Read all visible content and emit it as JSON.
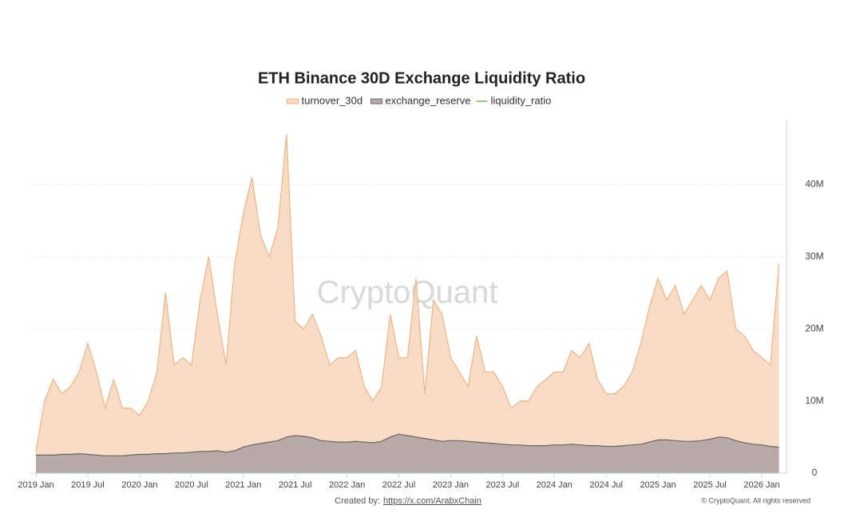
{
  "chart_data": {
    "type": "area",
    "title": "ETH Binance 30D Exchange Liquidity Ratio",
    "watermark": "CryptoQuant",
    "footer": {
      "prefix": "Created by:",
      "link": "https://x.com/ArabxChain",
      "copyright": "© CryptoQuant. All rights reserved"
    },
    "x": [
      "2019-01",
      "2019-02",
      "2019-03",
      "2019-04",
      "2019-05",
      "2019-06",
      "2019-07",
      "2019-08",
      "2019-09",
      "2019-10",
      "2019-11",
      "2019-12",
      "2020-01",
      "2020-02",
      "2020-03",
      "2020-04",
      "2020-05",
      "2020-06",
      "2020-07",
      "2020-08",
      "2020-09",
      "2020-10",
      "2020-11",
      "2020-12",
      "2021-01",
      "2021-02",
      "2021-03",
      "2021-04",
      "2021-05",
      "2021-06",
      "2021-07",
      "2021-08",
      "2021-09",
      "2021-10",
      "2021-11",
      "2021-12",
      "2022-01",
      "2022-02",
      "2022-03",
      "2022-04",
      "2022-05",
      "2022-06",
      "2022-07",
      "2022-08",
      "2022-09",
      "2022-10",
      "2022-11",
      "2022-12",
      "2023-01",
      "2023-02",
      "2023-03",
      "2023-04",
      "2023-05",
      "2023-06",
      "2023-07",
      "2023-08",
      "2023-09",
      "2023-10",
      "2023-11",
      "2023-12",
      "2024-01",
      "2024-02",
      "2024-03",
      "2024-04",
      "2024-05",
      "2024-06",
      "2024-07",
      "2024-08",
      "2024-09",
      "2024-10",
      "2024-11",
      "2024-12",
      "2025-01",
      "2025-02",
      "2025-03",
      "2025-04",
      "2025-05",
      "2025-06",
      "2025-07",
      "2025-08",
      "2025-09",
      "2025-10",
      "2025-11",
      "2025-12",
      "2026-01",
      "2026-02",
      "2026-03"
    ],
    "series": [
      {
        "name": "turnover_30d",
        "color": "#f0b483",
        "fill": "#f9dcc5",
        "values": [
          3000000,
          10000000,
          13000000,
          11000000,
          12000000,
          14000000,
          18000000,
          14000000,
          9000000,
          13000000,
          9000000,
          9000000,
          8000000,
          10000000,
          14000000,
          25000000,
          15000000,
          16000000,
          15000000,
          24000000,
          30000000,
          22000000,
          15000000,
          29000000,
          36000000,
          41000000,
          33000000,
          30000000,
          34000000,
          47000000,
          21000000,
          20000000,
          22000000,
          19000000,
          15000000,
          16000000,
          16000000,
          17000000,
          12000000,
          10000000,
          12000000,
          22000000,
          16000000,
          16000000,
          27000000,
          11000000,
          24000000,
          22000000,
          16000000,
          14000000,
          12000000,
          19000000,
          14000000,
          14000000,
          12000000,
          9000000,
          10000000,
          10000000,
          12000000,
          13000000,
          14000000,
          14000000,
          17000000,
          16000000,
          18000000,
          13000000,
          11000000,
          11000000,
          12000000,
          14000000,
          18000000,
          23000000,
          27000000,
          24000000,
          26000000,
          22000000,
          24000000,
          26000000,
          24000000,
          27000000,
          28000000,
          20000000,
          19000000,
          17000000,
          16000000,
          15000000,
          29000000
        ]
      },
      {
        "name": "exchange_reserve",
        "color": "#6b6464",
        "fill": "#b8aaa8",
        "values": [
          2500000,
          2500000,
          2500000,
          2600000,
          2600000,
          2700000,
          2600000,
          2500000,
          2400000,
          2400000,
          2400000,
          2500000,
          2600000,
          2600000,
          2700000,
          2700000,
          2800000,
          2800000,
          2900000,
          3000000,
          3000000,
          3100000,
          2900000,
          3100000,
          3600000,
          3900000,
          4100000,
          4300000,
          4500000,
          5000000,
          5200000,
          5100000,
          4900000,
          4500000,
          4400000,
          4300000,
          4300000,
          4400000,
          4300000,
          4200000,
          4400000,
          5000000,
          5400000,
          5200000,
          5000000,
          4800000,
          4600000,
          4400000,
          4500000,
          4500000,
          4400000,
          4300000,
          4200000,
          4100000,
          4000000,
          3900000,
          3900000,
          3800000,
          3800000,
          3800000,
          3900000,
          3900000,
          4000000,
          3900000,
          3800000,
          3800000,
          3700000,
          3700000,
          3800000,
          3900000,
          4000000,
          4300000,
          4600000,
          4600000,
          4500000,
          4400000,
          4400000,
          4500000,
          4700000,
          5000000,
          4900000,
          4500000,
          4200000,
          4000000,
          3900000,
          3700000,
          3600000
        ]
      },
      {
        "name": "liquidity_ratio",
        "color": "#6cc04a",
        "values": [
          0,
          0,
          0,
          0,
          0,
          0,
          0,
          0,
          0,
          0,
          0,
          0,
          0,
          0,
          0,
          0,
          0,
          0,
          0,
          0,
          0,
          0,
          0,
          0,
          0,
          0,
          0,
          0,
          0,
          0,
          0,
          0,
          0,
          0,
          0,
          0,
          0,
          0,
          0,
          0,
          0,
          0,
          0,
          0,
          0,
          0,
          0,
          0,
          0,
          0,
          0,
          0,
          0,
          0,
          0,
          0,
          0,
          0,
          0,
          0,
          0,
          0,
          0,
          0,
          0,
          0,
          0,
          0,
          0,
          0,
          0,
          0,
          0,
          0,
          0,
          0,
          0,
          0,
          0,
          0,
          0,
          0,
          0,
          0,
          0,
          0,
          0
        ]
      }
    ],
    "ylim": [
      0,
      49000000
    ],
    "yticks": [
      0,
      {
        "value": 10000000,
        "label": "10M"
      },
      {
        "value": 20000000,
        "label": "20M"
      },
      {
        "value": 30000000,
        "label": "30M"
      },
      {
        "value": 40000000,
        "label": "40M"
      }
    ],
    "xticks": [
      {
        "value": "2019-01",
        "label": "2019 Jan"
      },
      {
        "value": "2019-07",
        "label": "2019 Jul"
      },
      {
        "value": "2020-01",
        "label": "2020 Jan"
      },
      {
        "value": "2020-07",
        "label": "2020 Jul"
      },
      {
        "value": "2021-01",
        "label": "2021 Jan"
      },
      {
        "value": "2021-07",
        "label": "2021 Jul"
      },
      {
        "value": "2022-01",
        "label": "2022 Jan"
      },
      {
        "value": "2022-07",
        "label": "2022 Jul"
      },
      {
        "value": "2023-01",
        "label": "2023 Jan"
      },
      {
        "value": "2023-07",
        "label": "2023 Jul"
      },
      {
        "value": "2024-01",
        "label": "2024 Jan"
      },
      {
        "value": "2024-07",
        "label": "2024 Jul"
      },
      {
        "value": "2025-01",
        "label": "2025 Jan"
      },
      {
        "value": "2025-07",
        "label": "2025 Jul"
      },
      {
        "value": "2026-01",
        "label": "2026 Jan"
      }
    ],
    "grid": true,
    "legend": "top"
  }
}
